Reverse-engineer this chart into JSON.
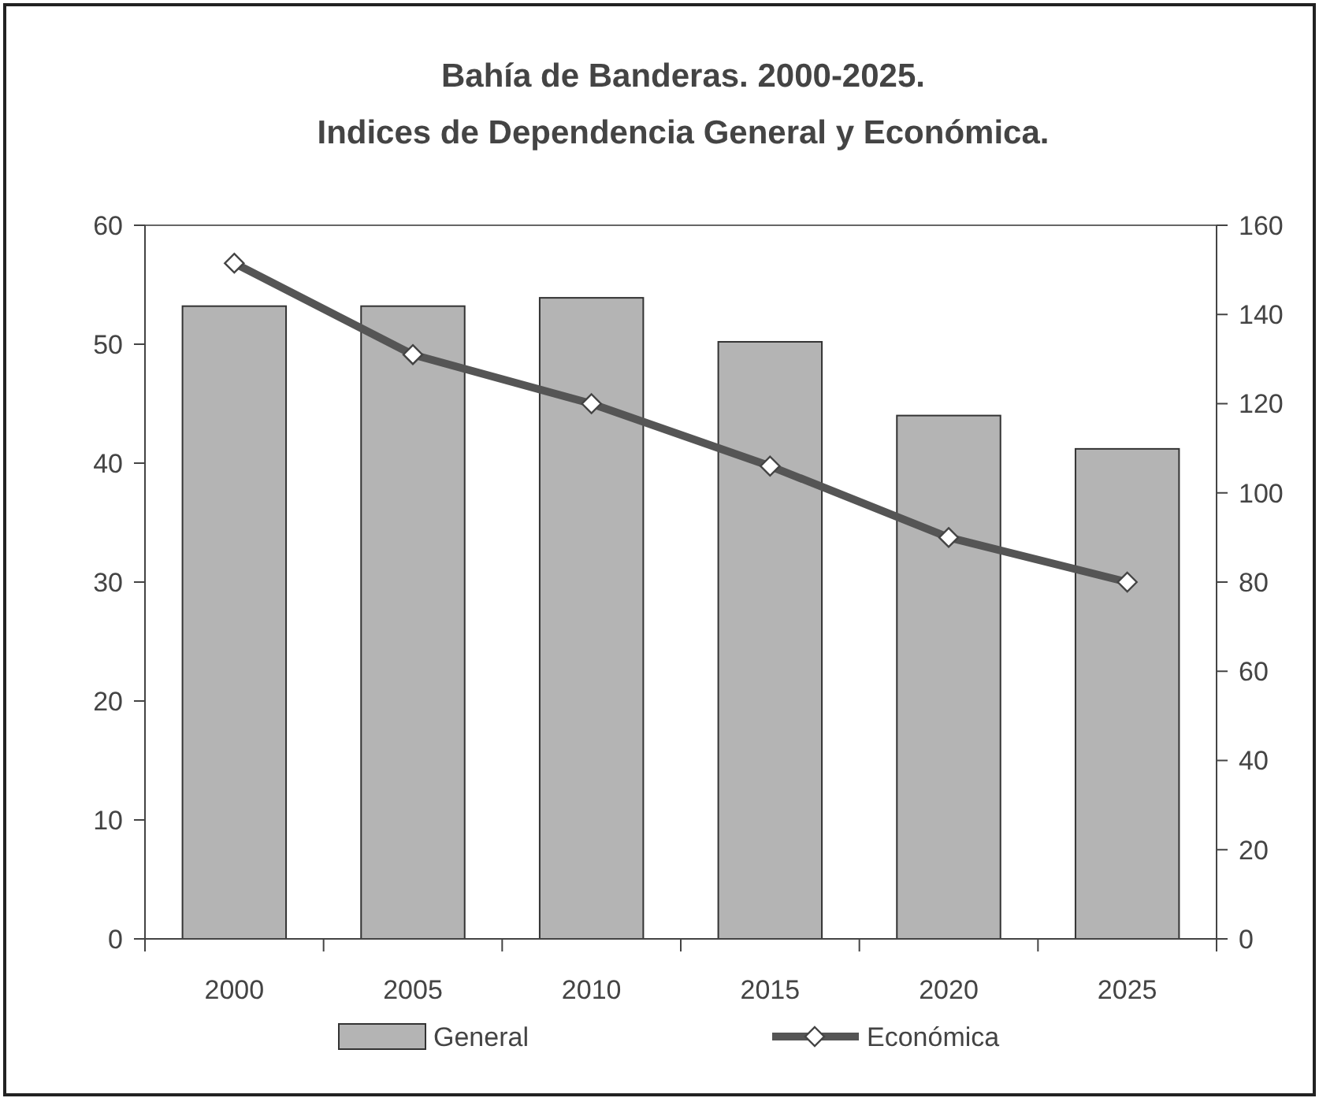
{
  "chart_data": {
    "type": "bar",
    "title": "Bahía de Banderas. 2000-2025.",
    "subtitle": "Indices de Dependencia General y Económica.",
    "categories": [
      "2000",
      "2005",
      "2010",
      "2015",
      "2020",
      "2025"
    ],
    "series": [
      {
        "name": "General",
        "color": "#b4b4b4",
        "values": [
          53.2,
          53.2,
          53.9,
          50.2,
          44.0,
          41.2
        ]
      },
      {
        "name": "Económica",
        "type": "line",
        "axis": "y2",
        "color": "#555555",
        "marker": "diamond",
        "values": [
          151.5,
          131,
          120,
          106,
          90,
          80
        ]
      }
    ],
    "ylim": [
      0,
      60
    ],
    "yticks": [
      0,
      10,
      20,
      30,
      40,
      50,
      60
    ],
    "y2lim": [
      0,
      160
    ],
    "y2ticks": [
      0,
      20,
      40,
      60,
      80,
      100,
      120,
      140,
      160
    ],
    "grid": false,
    "legend": "bottom"
  }
}
